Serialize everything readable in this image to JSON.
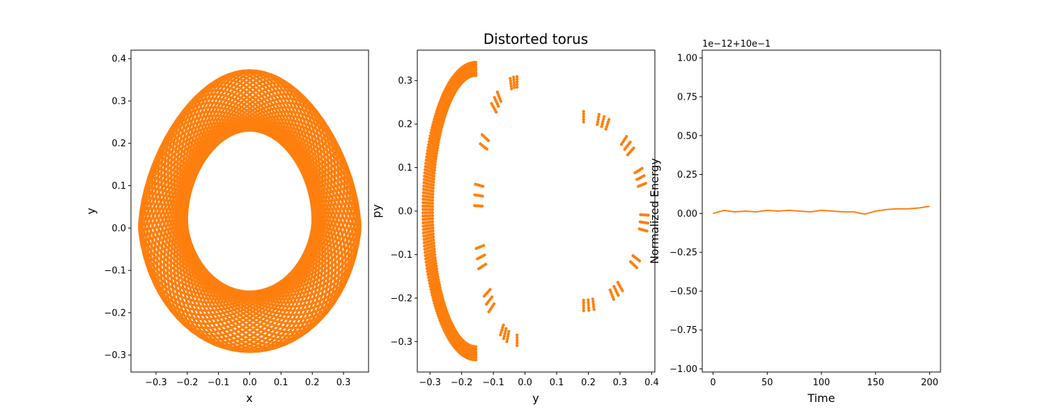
{
  "figure": {
    "title": "Distorted torus",
    "color": "#ff7f0e"
  },
  "chart_data": [
    {
      "type": "line",
      "title": "",
      "xlabel": "x",
      "ylabel": "y",
      "xlim": [
        -0.38,
        0.38
      ],
      "ylim": [
        -0.34,
        0.42
      ],
      "xticks": [
        -0.3,
        -0.2,
        -0.1,
        0.0,
        0.1,
        0.2,
        0.3
      ],
      "xtick_labels": [
        "−0.3",
        "−0.2",
        "−0.1",
        "0.0",
        "0.1",
        "0.2",
        "0.3"
      ],
      "yticks": [
        -0.3,
        -0.2,
        -0.1,
        0.0,
        0.1,
        0.2,
        0.3,
        0.4
      ],
      "ytick_labels": [
        "−0.3",
        "−0.2",
        "−0.1",
        "0.0",
        "0.1",
        "0.2",
        "0.3",
        "0.4"
      ],
      "grid": false,
      "series": [
        {
          "color": "#ff7f0e",
          "description_values": {
            "x": [
              0.0,
              0.36,
              0.25,
              0.0,
              -0.25,
              -0.36,
              0.0
            ],
            "y": [
              0.38,
              0.0,
              -0.28,
              -0.31,
              -0.28,
              0.0,
              0.38
            ]
          }
        }
      ]
    },
    {
      "type": "scatter",
      "title": "Distorted torus",
      "xlabel": "y",
      "ylabel": "py",
      "xlim": [
        -0.34,
        0.41
      ],
      "ylim": [
        -0.37,
        0.37
      ],
      "xticks": [
        -0.3,
        -0.2,
        -0.1,
        0.0,
        0.1,
        0.2,
        0.3,
        0.4
      ],
      "xtick_labels": [
        "−0.3",
        "−0.2",
        "−0.1",
        "0.0",
        "0.1",
        "0.2",
        "0.3",
        "0.4"
      ],
      "yticks": [
        -0.3,
        -0.2,
        -0.1,
        0.0,
        0.1,
        0.2,
        0.3
      ],
      "ytick_labels": [
        "−0.3",
        "−0.2",
        "−0.1",
        "0.0",
        "0.1",
        "0.2",
        "0.3"
      ],
      "grid": false,
      "series": [
        {
          "color": "#ff7f0e",
          "rings": [
            {
              "left": -0.31,
              "right": 0.0,
              "height": 0.33
            },
            {
              "left": -0.15,
              "right": 0.1,
              "height": 0.3
            },
            {
              "left": -0.01,
              "right": 0.38,
              "height": 0.22
            }
          ]
        }
      ]
    },
    {
      "type": "line",
      "title": "",
      "xlabel": "Time",
      "ylabel": "Normalized Energy",
      "offset_text": "1e−12+10e−1",
      "xlim": [
        -10,
        210
      ],
      "ylim": [
        -1.02,
        1.05
      ],
      "xticks": [
        0,
        50,
        100,
        150,
        200
      ],
      "xtick_labels": [
        "0",
        "50",
        "100",
        "150",
        "200"
      ],
      "yticks": [
        -1.0,
        -0.75,
        -0.5,
        -0.25,
        0.0,
        0.25,
        0.5,
        0.75,
        1.0
      ],
      "ytick_labels": [
        "−1.00",
        "−0.75",
        "−0.50",
        "−0.25",
        "0.00",
        "0.25",
        "0.50",
        "0.75",
        "1.00"
      ],
      "grid": false,
      "series": [
        {
          "color": "#ff7f0e",
          "x": [
            0,
            10,
            20,
            30,
            40,
            50,
            60,
            70,
            80,
            90,
            100,
            110,
            120,
            130,
            140,
            150,
            160,
            170,
            180,
            190,
            200
          ],
          "y": [
            0.0,
            0.02,
            0.01,
            0.015,
            0.01,
            0.02,
            0.015,
            0.02,
            0.015,
            0.01,
            0.02,
            0.015,
            0.01,
            0.01,
            -0.005,
            0.015,
            0.025,
            0.03,
            0.03,
            0.035,
            0.045
          ]
        }
      ]
    }
  ]
}
